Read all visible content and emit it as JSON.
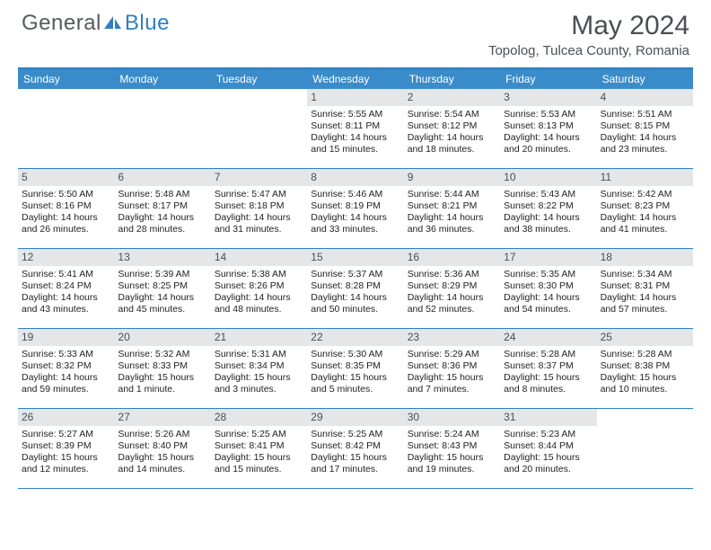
{
  "logo": {
    "text1": "General",
    "text2": "Blue"
  },
  "title": "May 2024",
  "location": "Topolog, Tulcea County, Romania",
  "colors": {
    "accent": "#3a8bc9",
    "border": "#2f7fc1",
    "dayBar": "#e4e6e8",
    "text": "#4a4f54"
  },
  "weekdays": [
    "Sunday",
    "Monday",
    "Tuesday",
    "Wednesday",
    "Thursday",
    "Friday",
    "Saturday"
  ],
  "weeks": [
    [
      {
        "n": "",
        "sr": "",
        "ss": "",
        "dl": ""
      },
      {
        "n": "",
        "sr": "",
        "ss": "",
        "dl": ""
      },
      {
        "n": "",
        "sr": "",
        "ss": "",
        "dl": ""
      },
      {
        "n": "1",
        "sr": "Sunrise: 5:55 AM",
        "ss": "Sunset: 8:11 PM",
        "dl": "Daylight: 14 hours and 15 minutes."
      },
      {
        "n": "2",
        "sr": "Sunrise: 5:54 AM",
        "ss": "Sunset: 8:12 PM",
        "dl": "Daylight: 14 hours and 18 minutes."
      },
      {
        "n": "3",
        "sr": "Sunrise: 5:53 AM",
        "ss": "Sunset: 8:13 PM",
        "dl": "Daylight: 14 hours and 20 minutes."
      },
      {
        "n": "4",
        "sr": "Sunrise: 5:51 AM",
        "ss": "Sunset: 8:15 PM",
        "dl": "Daylight: 14 hours and 23 minutes."
      }
    ],
    [
      {
        "n": "5",
        "sr": "Sunrise: 5:50 AM",
        "ss": "Sunset: 8:16 PM",
        "dl": "Daylight: 14 hours and 26 minutes."
      },
      {
        "n": "6",
        "sr": "Sunrise: 5:48 AM",
        "ss": "Sunset: 8:17 PM",
        "dl": "Daylight: 14 hours and 28 minutes."
      },
      {
        "n": "7",
        "sr": "Sunrise: 5:47 AM",
        "ss": "Sunset: 8:18 PM",
        "dl": "Daylight: 14 hours and 31 minutes."
      },
      {
        "n": "8",
        "sr": "Sunrise: 5:46 AM",
        "ss": "Sunset: 8:19 PM",
        "dl": "Daylight: 14 hours and 33 minutes."
      },
      {
        "n": "9",
        "sr": "Sunrise: 5:44 AM",
        "ss": "Sunset: 8:21 PM",
        "dl": "Daylight: 14 hours and 36 minutes."
      },
      {
        "n": "10",
        "sr": "Sunrise: 5:43 AM",
        "ss": "Sunset: 8:22 PM",
        "dl": "Daylight: 14 hours and 38 minutes."
      },
      {
        "n": "11",
        "sr": "Sunrise: 5:42 AM",
        "ss": "Sunset: 8:23 PM",
        "dl": "Daylight: 14 hours and 41 minutes."
      }
    ],
    [
      {
        "n": "12",
        "sr": "Sunrise: 5:41 AM",
        "ss": "Sunset: 8:24 PM",
        "dl": "Daylight: 14 hours and 43 minutes."
      },
      {
        "n": "13",
        "sr": "Sunrise: 5:39 AM",
        "ss": "Sunset: 8:25 PM",
        "dl": "Daylight: 14 hours and 45 minutes."
      },
      {
        "n": "14",
        "sr": "Sunrise: 5:38 AM",
        "ss": "Sunset: 8:26 PM",
        "dl": "Daylight: 14 hours and 48 minutes."
      },
      {
        "n": "15",
        "sr": "Sunrise: 5:37 AM",
        "ss": "Sunset: 8:28 PM",
        "dl": "Daylight: 14 hours and 50 minutes."
      },
      {
        "n": "16",
        "sr": "Sunrise: 5:36 AM",
        "ss": "Sunset: 8:29 PM",
        "dl": "Daylight: 14 hours and 52 minutes."
      },
      {
        "n": "17",
        "sr": "Sunrise: 5:35 AM",
        "ss": "Sunset: 8:30 PM",
        "dl": "Daylight: 14 hours and 54 minutes."
      },
      {
        "n": "18",
        "sr": "Sunrise: 5:34 AM",
        "ss": "Sunset: 8:31 PM",
        "dl": "Daylight: 14 hours and 57 minutes."
      }
    ],
    [
      {
        "n": "19",
        "sr": "Sunrise: 5:33 AM",
        "ss": "Sunset: 8:32 PM",
        "dl": "Daylight: 14 hours and 59 minutes."
      },
      {
        "n": "20",
        "sr": "Sunrise: 5:32 AM",
        "ss": "Sunset: 8:33 PM",
        "dl": "Daylight: 15 hours and 1 minute."
      },
      {
        "n": "21",
        "sr": "Sunrise: 5:31 AM",
        "ss": "Sunset: 8:34 PM",
        "dl": "Daylight: 15 hours and 3 minutes."
      },
      {
        "n": "22",
        "sr": "Sunrise: 5:30 AM",
        "ss": "Sunset: 8:35 PM",
        "dl": "Daylight: 15 hours and 5 minutes."
      },
      {
        "n": "23",
        "sr": "Sunrise: 5:29 AM",
        "ss": "Sunset: 8:36 PM",
        "dl": "Daylight: 15 hours and 7 minutes."
      },
      {
        "n": "24",
        "sr": "Sunrise: 5:28 AM",
        "ss": "Sunset: 8:37 PM",
        "dl": "Daylight: 15 hours and 8 minutes."
      },
      {
        "n": "25",
        "sr": "Sunrise: 5:28 AM",
        "ss": "Sunset: 8:38 PM",
        "dl": "Daylight: 15 hours and 10 minutes."
      }
    ],
    [
      {
        "n": "26",
        "sr": "Sunrise: 5:27 AM",
        "ss": "Sunset: 8:39 PM",
        "dl": "Daylight: 15 hours and 12 minutes."
      },
      {
        "n": "27",
        "sr": "Sunrise: 5:26 AM",
        "ss": "Sunset: 8:40 PM",
        "dl": "Daylight: 15 hours and 14 minutes."
      },
      {
        "n": "28",
        "sr": "Sunrise: 5:25 AM",
        "ss": "Sunset: 8:41 PM",
        "dl": "Daylight: 15 hours and 15 minutes."
      },
      {
        "n": "29",
        "sr": "Sunrise: 5:25 AM",
        "ss": "Sunset: 8:42 PM",
        "dl": "Daylight: 15 hours and 17 minutes."
      },
      {
        "n": "30",
        "sr": "Sunrise: 5:24 AM",
        "ss": "Sunset: 8:43 PM",
        "dl": "Daylight: 15 hours and 19 minutes."
      },
      {
        "n": "31",
        "sr": "Sunrise: 5:23 AM",
        "ss": "Sunset: 8:44 PM",
        "dl": "Daylight: 15 hours and 20 minutes."
      },
      {
        "n": "",
        "sr": "",
        "ss": "",
        "dl": ""
      }
    ]
  ]
}
